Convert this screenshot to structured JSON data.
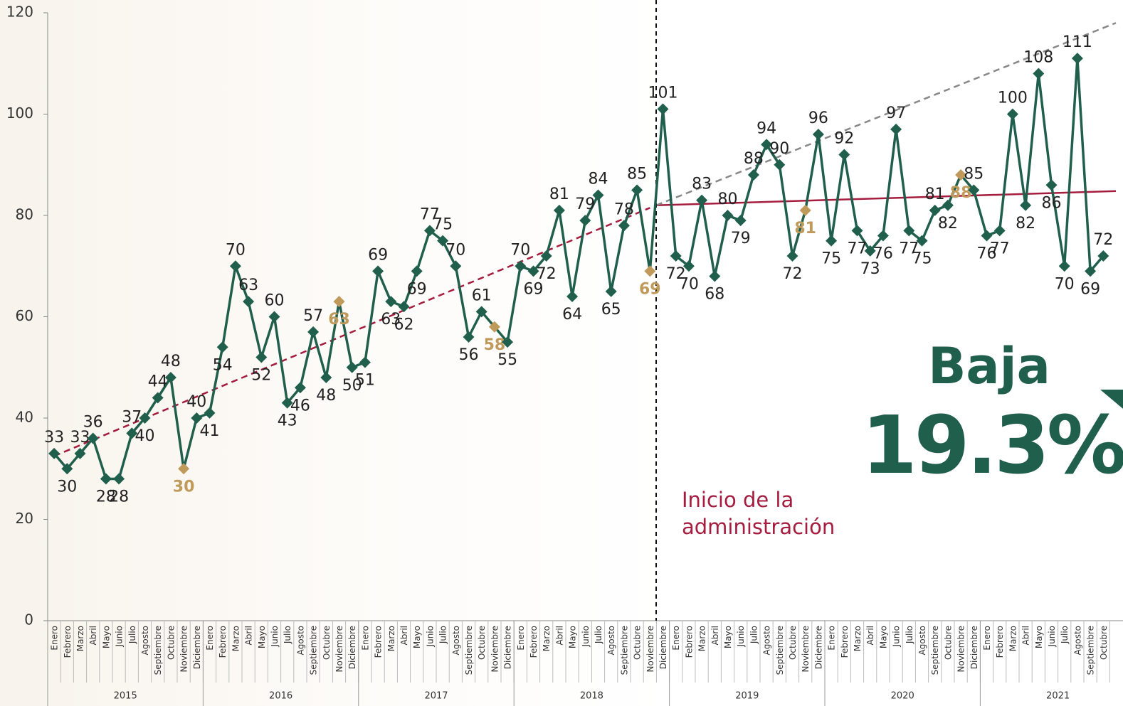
{
  "chart_data": {
    "type": "line",
    "categories": [
      "Enero",
      "Febrero",
      "Marzo",
      "Abril",
      "Mayo",
      "Junio",
      "Julio",
      "Agosto",
      "Septiembre",
      "Octubre",
      "Noviembre",
      "Diciembre",
      "Enero",
      "Febrero",
      "Marzo",
      "Abril",
      "Mayo",
      "Junio",
      "Julio",
      "Agosto",
      "Septiembre",
      "Octubre",
      "Noviembre",
      "Diciembre",
      "Enero",
      "Febrero",
      "Marzo",
      "Abril",
      "Mayo",
      "Junio",
      "Julio",
      "Agosto",
      "Septiembre",
      "Octubre",
      "Noviembre",
      "Diciembre",
      "Enero",
      "Febrero",
      "Marzo",
      "Abril",
      "Mayo",
      "Junio",
      "Julio",
      "Agosto",
      "Septiembre",
      "Octubre",
      "Noviembre",
      "Diciembre",
      "Enero",
      "Febrero",
      "Marzo",
      "Abril",
      "Mayo",
      "Junio",
      "Julio",
      "Agosto",
      "Septiembre",
      "Octubre",
      "Noviembre",
      "Diciembre",
      "Enero",
      "Febrero",
      "Marzo",
      "Abril",
      "Mayo",
      "Junio",
      "Julio",
      "Agosto",
      "Septiembre",
      "Octubre",
      "Noviembre",
      "Diciembre",
      "Enero",
      "Febrero",
      "Marzo",
      "Abril",
      "Mayo",
      "Junio",
      "Julio",
      "Agosto",
      "Septiembre",
      "Octubre"
    ],
    "years": [
      "2015",
      "2016",
      "2017",
      "2018",
      "2019",
      "2020",
      "2021"
    ],
    "values": [
      33,
      30,
      33,
      36,
      28,
      28,
      37,
      40,
      44,
      48,
      30,
      40,
      41,
      54,
      70,
      63,
      52,
      60,
      43,
      46,
      57,
      48,
      63,
      50,
      51,
      69,
      63,
      62,
      69,
      77,
      75,
      70,
      56,
      61,
      58,
      55,
      70,
      69,
      72,
      81,
      64,
      79,
      84,
      65,
      78,
      85,
      69,
      101,
      72,
      70,
      83,
      68,
      80,
      79,
      88,
      94,
      90,
      72,
      81,
      96,
      75,
      92,
      77,
      73,
      76,
      97,
      77,
      75,
      81,
      82,
      88,
      85,
      76,
      77,
      100,
      82,
      108,
      86,
      70,
      111,
      69,
      72
    ],
    "color": "#215f4d",
    "marker_colors": [
      "#215f4d",
      "#215f4d",
      "#215f4d",
      "#215f4d",
      "#215f4d",
      "#215f4d",
      "#215f4d",
      "#215f4d",
      "#215f4d",
      "#215f4d",
      "#c09a5b",
      "#215f4d",
      "#215f4d",
      "#215f4d",
      "#215f4d",
      "#215f4d",
      "#215f4d",
      "#215f4d",
      "#215f4d",
      "#215f4d",
      "#215f4d",
      "#215f4d",
      "#c09a5b",
      "#215f4d",
      "#215f4d",
      "#215f4d",
      "#215f4d",
      "#215f4d",
      "#215f4d",
      "#215f4d",
      "#215f4d",
      "#215f4d",
      "#215f4d",
      "#215f4d",
      "#c09a5b",
      "#215f4d",
      "#215f4d",
      "#215f4d",
      "#215f4d",
      "#215f4d",
      "#215f4d",
      "#215f4d",
      "#215f4d",
      "#215f4d",
      "#215f4d",
      "#215f4d",
      "#c09a5b",
      "#215f4d",
      "#215f4d",
      "#215f4d",
      "#215f4d",
      "#215f4d",
      "#215f4d",
      "#215f4d",
      "#215f4d",
      "#215f4d",
      "#215f4d",
      "#215f4d",
      "#c09a5b",
      "#215f4d",
      "#215f4d",
      "#215f4d",
      "#215f4d",
      "#215f4d",
      "#215f4d",
      "#215f4d",
      "#215f4d",
      "#215f4d",
      "#215f4d",
      "#215f4d",
      "#c09a5b",
      "#215f4d",
      "#215f4d",
      "#215f4d",
      "#215f4d",
      "#215f4d",
      "#215f4d",
      "#215f4d",
      "#215f4d",
      "#215f4d",
      "#215f4d",
      "#215f4d"
    ],
    "ylim": [
      0,
      120
    ],
    "yticks": [
      0,
      20,
      40,
      60,
      80,
      100,
      120
    ],
    "trends": [
      {
        "color": "#a51c3e",
        "dashed": true,
        "values": [
          32.5,
          81.5
        ]
      },
      {
        "color": "#a51c3e",
        "dashed": false,
        "values": [
          82,
          84.8
        ]
      },
      {
        "color": "#888888",
        "dashed": true,
        "values": [
          82,
          118
        ]
      }
    ],
    "annotation": "Inicio de la\nadministración",
    "headline": "Baja",
    "headline_value": "19.3%"
  }
}
